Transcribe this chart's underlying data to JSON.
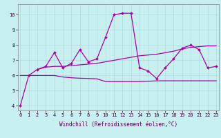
{
  "xlabel": "Windchill (Refroidissement éolien,°C)",
  "bg_color": "#c8f0f0",
  "grid_color": "#aadddd",
  "line_color": "#aa00aa",
  "spine_color": "#888888",
  "tick_color": "#330033",
  "label_color": "#550055",
  "xlim": [
    -0.3,
    23.3
  ],
  "ylim": [
    3.7,
    10.7
  ],
  "yticks": [
    4,
    5,
    6,
    7,
    8,
    9,
    10
  ],
  "xticks": [
    0,
    1,
    2,
    3,
    4,
    5,
    6,
    7,
    8,
    9,
    10,
    11,
    12,
    13,
    14,
    15,
    16,
    17,
    18,
    19,
    20,
    21,
    22,
    23
  ],
  "line1_x": [
    0,
    1,
    2,
    3,
    4,
    5,
    6,
    7,
    8,
    9,
    10,
    11,
    12,
    13,
    14,
    15,
    16,
    17,
    18,
    19,
    20,
    21,
    22,
    23
  ],
  "line1_y": [
    4.0,
    6.0,
    6.4,
    6.6,
    7.5,
    6.5,
    6.8,
    7.7,
    6.9,
    7.1,
    8.5,
    10.0,
    10.1,
    10.1,
    6.5,
    6.3,
    5.8,
    6.5,
    7.1,
    7.8,
    8.0,
    7.7,
    6.5,
    6.6
  ],
  "line2_x": [
    2,
    3,
    4,
    5,
    6,
    7,
    8,
    9,
    10,
    11,
    12,
    13,
    14,
    15,
    16,
    17,
    18,
    19,
    20,
    21,
    22,
    23
  ],
  "line2_y": [
    6.4,
    6.55,
    6.6,
    6.6,
    6.65,
    6.7,
    6.75,
    6.8,
    6.9,
    7.0,
    7.1,
    7.2,
    7.3,
    7.35,
    7.4,
    7.5,
    7.6,
    7.75,
    7.85,
    7.9,
    7.95,
    7.95
  ],
  "line3_x": [
    0,
    1,
    2,
    3,
    4,
    5,
    6,
    7,
    8,
    9,
    10,
    11,
    12,
    13,
    14,
    15,
    16,
    17,
    18,
    19,
    20,
    21,
    22,
    23
  ],
  "line3_y": [
    6.0,
    6.0,
    6.0,
    6.0,
    6.0,
    5.9,
    5.85,
    5.82,
    5.8,
    5.78,
    5.6,
    5.6,
    5.6,
    5.6,
    5.6,
    5.62,
    5.65,
    5.65,
    5.65,
    5.65,
    5.65,
    5.65,
    5.65,
    5.65
  ],
  "xlabel_fontsize": 5.5,
  "tick_fontsize": 5.0,
  "lw": 0.9,
  "marker": "D",
  "ms": 2.0
}
